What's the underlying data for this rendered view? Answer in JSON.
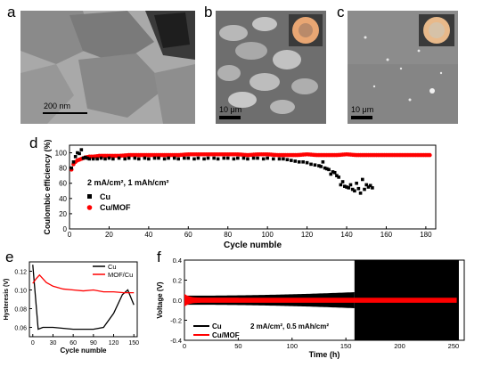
{
  "panel_labels": [
    "a",
    "b",
    "c",
    "d",
    "e",
    "f"
  ],
  "micrographs": {
    "a": {
      "scale_label": "200 nm",
      "colors": {
        "bg": "#a9a9a9",
        "flake": "#7d7d7d",
        "dark": "#2e2e2e"
      }
    },
    "b": {
      "scale_label": "10 μm",
      "colors": {
        "bg": "#6e6e6e",
        "light": "#c8c8c8",
        "disc": "#e8a673"
      }
    },
    "c": {
      "scale_label": "10 μm",
      "colors": {
        "bg": "#8c8c8c",
        "speck": "#e6e6e6",
        "disc": "#e8b98a"
      }
    }
  },
  "chart_data": [
    {
      "panel": "d",
      "type": "scatter",
      "xlabel": "Cycle numble",
      "ylabel": "Coulombic efficiency (%)",
      "xlim": [
        0,
        185
      ],
      "ylim": [
        0,
        110
      ],
      "xticks": [
        0,
        20,
        40,
        60,
        80,
        100,
        120,
        140,
        160,
        180
      ],
      "yticks": [
        0,
        20,
        40,
        60,
        80,
        100
      ],
      "annotation": "2 mA/cm², 1 mAh/cm²",
      "legend": "left",
      "series": [
        {
          "name": "Cu",
          "color": "#000000",
          "marker": "square",
          "points": [
            [
              1,
              80
            ],
            [
              2,
              88
            ],
            [
              3,
              95
            ],
            [
              4,
              100
            ],
            [
              5,
              99
            ],
            [
              6,
              104
            ],
            [
              7,
              93
            ],
            [
              8,
              94
            ],
            [
              9,
              93
            ],
            [
              10,
              92
            ],
            [
              12,
              92
            ],
            [
              14,
              92
            ],
            [
              16,
              93
            ],
            [
              18,
              92
            ],
            [
              20,
              93
            ],
            [
              22,
              92
            ],
            [
              25,
              93
            ],
            [
              28,
              92
            ],
            [
              30,
              93
            ],
            [
              33,
              93
            ],
            [
              35,
              92
            ],
            [
              38,
              93
            ],
            [
              40,
              92
            ],
            [
              43,
              93
            ],
            [
              45,
              93
            ],
            [
              48,
              92
            ],
            [
              50,
              93
            ],
            [
              53,
              93
            ],
            [
              55,
              92
            ],
            [
              58,
              93
            ],
            [
              60,
              93
            ],
            [
              63,
              92
            ],
            [
              65,
              93
            ],
            [
              68,
              92
            ],
            [
              70,
              93
            ],
            [
              73,
              93
            ],
            [
              75,
              92
            ],
            [
              78,
              93
            ],
            [
              80,
              93
            ],
            [
              83,
              92
            ],
            [
              85,
              93
            ],
            [
              88,
              93
            ],
            [
              90,
              92
            ],
            [
              93,
              93
            ],
            [
              95,
              93
            ],
            [
              98,
              92
            ],
            [
              100,
              93
            ],
            [
              103,
              92
            ],
            [
              106,
              92
            ],
            [
              108,
              92
            ],
            [
              110,
              91
            ],
            [
              112,
              90
            ],
            [
              114,
              89
            ],
            [
              116,
              88
            ],
            [
              118,
              88
            ],
            [
              120,
              87
            ],
            [
              122,
              85
            ],
            [
              124,
              84
            ],
            [
              126,
              83
            ],
            [
              127,
              82
            ],
            [
              128,
              88
            ],
            [
              129,
              80
            ],
            [
              130,
              79
            ],
            [
              131,
              78
            ],
            [
              132,
              72
            ],
            [
              133,
              75
            ],
            [
              134,
              74
            ],
            [
              135,
              70
            ],
            [
              136,
              68
            ],
            [
              137,
              58
            ],
            [
              138,
              62
            ],
            [
              139,
              56
            ],
            [
              140,
              55
            ],
            [
              141,
              54
            ],
            [
              142,
              58
            ],
            [
              143,
              52
            ],
            [
              144,
              50
            ],
            [
              145,
              60
            ],
            [
              146,
              53
            ],
            [
              147,
              47
            ],
            [
              148,
              65
            ],
            [
              149,
              52
            ],
            [
              150,
              58
            ],
            [
              151,
              55
            ],
            [
              152,
              57
            ],
            [
              153,
              54
            ]
          ]
        },
        {
          "name": "Cu/MOF",
          "color": "#ff0000",
          "marker": "circle",
          "points": [
            [
              1,
              78
            ],
            [
              2,
              85
            ],
            [
              3,
              88
            ],
            [
              4,
              90
            ],
            [
              5,
              91
            ],
            [
              6,
              92
            ],
            [
              7,
              93
            ],
            [
              8,
              94
            ],
            [
              10,
              95
            ],
            [
              12,
              95
            ],
            [
              15,
              96
            ],
            [
              18,
              96
            ],
            [
              20,
              96
            ],
            [
              25,
              96
            ],
            [
              30,
              97
            ],
            [
              35,
              97
            ],
            [
              40,
              97
            ],
            [
              45,
              97
            ],
            [
              50,
              97
            ],
            [
              55,
              97
            ],
            [
              60,
              98
            ],
            [
              65,
              98
            ],
            [
              70,
              98
            ],
            [
              75,
              98
            ],
            [
              80,
              98
            ],
            [
              85,
              98
            ],
            [
              90,
              97
            ],
            [
              95,
              98
            ],
            [
              100,
              98
            ],
            [
              105,
              97
            ],
            [
              110,
              97
            ],
            [
              115,
              97
            ],
            [
              120,
              98
            ],
            [
              125,
              97
            ],
            [
              130,
              97
            ],
            [
              135,
              97
            ],
            [
              140,
              98
            ],
            [
              145,
              97
            ],
            [
              150,
              97
            ],
            [
              155,
              97
            ],
            [
              160,
              97
            ],
            [
              165,
              97
            ],
            [
              170,
              97
            ],
            [
              175,
              97
            ],
            [
              180,
              97
            ],
            [
              182,
              97
            ]
          ]
        }
      ]
    },
    {
      "panel": "e",
      "type": "line",
      "xlabel": "Cycle numble",
      "ylabel": "Hysteresis (V)",
      "xlim": [
        -5,
        155
      ],
      "ylim": [
        0.05,
        0.13
      ],
      "xticks": [
        0,
        30,
        60,
        90,
        120,
        150
      ],
      "yticks": [
        0.06,
        0.08,
        0.1,
        0.12
      ],
      "legend": "top-right",
      "series": [
        {
          "name": "Cu",
          "color": "#000000",
          "x": [
            0,
            8,
            15,
            30,
            60,
            90,
            105,
            120,
            133,
            141,
            150
          ],
          "y": [
            0.127,
            0.058,
            0.06,
            0.06,
            0.058,
            0.058,
            0.06,
            0.075,
            0.095,
            0.1,
            0.084
          ]
        },
        {
          "name": "MOF/Cu",
          "color": "#ff0000",
          "x": [
            0,
            5,
            10,
            20,
            30,
            45,
            60,
            75,
            90,
            105,
            120,
            135,
            150
          ],
          "y": [
            0.107,
            0.112,
            0.116,
            0.108,
            0.104,
            0.101,
            0.1,
            0.099,
            0.1,
            0.098,
            0.098,
            0.097,
            0.097
          ]
        }
      ]
    },
    {
      "panel": "f",
      "type": "line",
      "xlabel": "Time (h)",
      "ylabel": "Voltage (V)",
      "xlim": [
        0,
        260
      ],
      "ylim": [
        -0.4,
        0.4
      ],
      "xticks": [
        0,
        50,
        100,
        150,
        200,
        250
      ],
      "yticks": [
        -0.4,
        -0.2,
        0.0,
        0.2,
        0.4
      ],
      "annotation": "2 mA/cm², 0.5 mAh/cm²",
      "legend": "bottom-left",
      "series": [
        {
          "name": "Cu",
          "color": "#000000",
          "amplitude_start": 0.045,
          "amplitude_before_failure": 0.08,
          "failure_time_h": 158,
          "amplitude_after_failure": 0.4,
          "end_h": 255
        },
        {
          "name": "Cu/MOF",
          "color": "#ff0000",
          "amplitude_start": 0.065,
          "amplitude_steady": 0.025,
          "end_h": 253
        }
      ]
    }
  ]
}
